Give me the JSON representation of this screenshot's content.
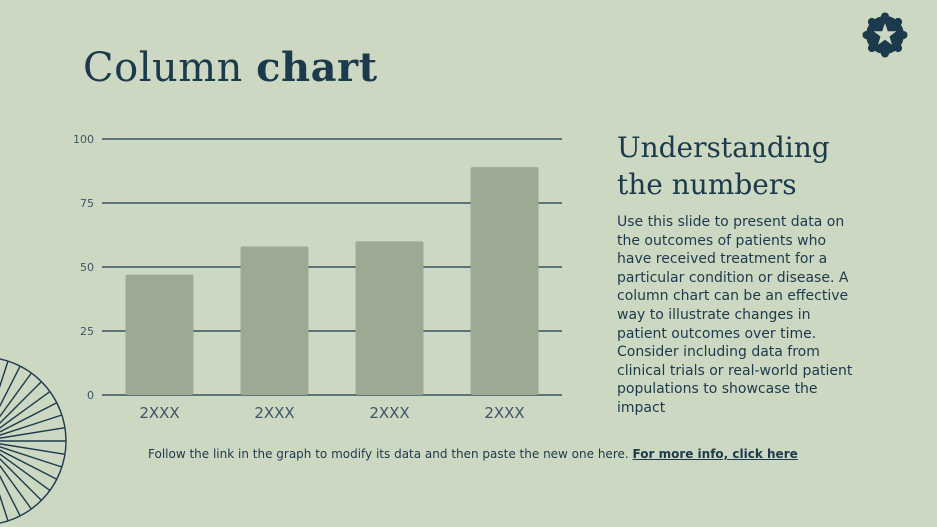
{
  "slide": {
    "title_light": "Column",
    "title_bold": "chart",
    "side_heading_line1": "Understanding",
    "side_heading_line2": "the numbers",
    "side_body": "Use this slide to present data on the outcomes of patients who have received treatment for a particular condition or disease. A column chart can be an effective way to illustrate changes in patient outcomes over time. Consider including data from clinical trials or real-world patient populations to showcase the impact",
    "footer_text": "Follow the link in the graph to modify its data and then paste the new one here.",
    "footer_link": "For more info, click here"
  },
  "icons": {
    "badge": "star-badge-icon",
    "decoration": "sunburst-icon"
  },
  "colors": {
    "background": "#cdd8c3",
    "bar": "#9caa93",
    "text": "#1b3a4b",
    "axis_text": "#3d5566"
  },
  "chart_data": {
    "type": "bar",
    "categories": [
      "2XXX",
      "2XXX",
      "2XXX",
      "2XXX"
    ],
    "values": [
      47,
      58,
      60,
      89
    ],
    "title": "",
    "xlabel": "",
    "ylabel": "",
    "ylim": [
      0,
      100
    ],
    "yticks": [
      0,
      25,
      50,
      75,
      100
    ],
    "grid": true,
    "legend": "none"
  }
}
